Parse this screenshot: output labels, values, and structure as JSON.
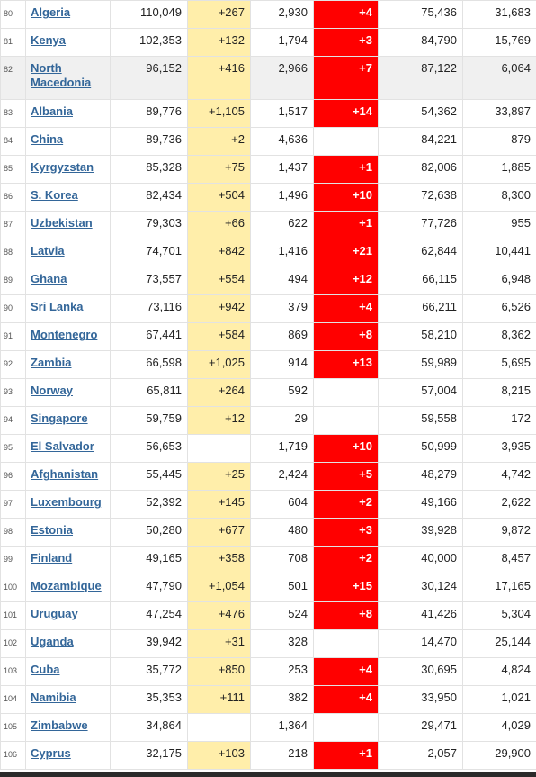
{
  "rows": [
    {
      "rank": "80",
      "country": "Algeria",
      "total": "110,049",
      "new_cases": "+267",
      "deaths": "2,930",
      "new_deaths": "+4",
      "recovered": "75,436",
      "active": "31,683"
    },
    {
      "rank": "81",
      "country": "Kenya",
      "total": "102,353",
      "new_cases": "+132",
      "deaths": "1,794",
      "new_deaths": "+3",
      "recovered": "84,790",
      "active": "15,769"
    },
    {
      "rank": "82",
      "country": "North Macedonia",
      "total": "96,152",
      "new_cases": "+416",
      "deaths": "2,966",
      "new_deaths": "+7",
      "recovered": "87,122",
      "active": "6,064",
      "highlight": true
    },
    {
      "rank": "83",
      "country": "Albania",
      "total": "89,776",
      "new_cases": "+1,105",
      "deaths": "1,517",
      "new_deaths": "+14",
      "recovered": "54,362",
      "active": "33,897"
    },
    {
      "rank": "84",
      "country": "China",
      "total": "89,736",
      "new_cases": "+2",
      "deaths": "4,636",
      "new_deaths": "",
      "recovered": "84,221",
      "active": "879"
    },
    {
      "rank": "85",
      "country": "Kyrgyzstan",
      "total": "85,328",
      "new_cases": "+75",
      "deaths": "1,437",
      "new_deaths": "+1",
      "recovered": "82,006",
      "active": "1,885"
    },
    {
      "rank": "86",
      "country": "S. Korea",
      "total": "82,434",
      "new_cases": "+504",
      "deaths": "1,496",
      "new_deaths": "+10",
      "recovered": "72,638",
      "active": "8,300"
    },
    {
      "rank": "87",
      "country": "Uzbekistan",
      "total": "79,303",
      "new_cases": "+66",
      "deaths": "622",
      "new_deaths": "+1",
      "recovered": "77,726",
      "active": "955"
    },
    {
      "rank": "88",
      "country": "Latvia",
      "total": "74,701",
      "new_cases": "+842",
      "deaths": "1,416",
      "new_deaths": "+21",
      "recovered": "62,844",
      "active": "10,441"
    },
    {
      "rank": "89",
      "country": "Ghana",
      "total": "73,557",
      "new_cases": "+554",
      "deaths": "494",
      "new_deaths": "+12",
      "recovered": "66,115",
      "active": "6,948"
    },
    {
      "rank": "90",
      "country": "Sri Lanka",
      "total": "73,116",
      "new_cases": "+942",
      "deaths": "379",
      "new_deaths": "+4",
      "recovered": "66,211",
      "active": "6,526"
    },
    {
      "rank": "91",
      "country": "Montenegro",
      "total": "67,441",
      "new_cases": "+584",
      "deaths": "869",
      "new_deaths": "+8",
      "recovered": "58,210",
      "active": "8,362"
    },
    {
      "rank": "92",
      "country": "Zambia",
      "total": "66,598",
      "new_cases": "+1,025",
      "deaths": "914",
      "new_deaths": "+13",
      "recovered": "59,989",
      "active": "5,695"
    },
    {
      "rank": "93",
      "country": "Norway",
      "total": "65,811",
      "new_cases": "+264",
      "deaths": "592",
      "new_deaths": "",
      "recovered": "57,004",
      "active": "8,215"
    },
    {
      "rank": "94",
      "country": "Singapore",
      "total": "59,759",
      "new_cases": "+12",
      "deaths": "29",
      "new_deaths": "",
      "recovered": "59,558",
      "active": "172"
    },
    {
      "rank": "95",
      "country": "El Salvador",
      "total": "56,653",
      "new_cases": "",
      "deaths": "1,719",
      "new_deaths": "+10",
      "recovered": "50,999",
      "active": "3,935"
    },
    {
      "rank": "96",
      "country": "Afghanistan",
      "total": "55,445",
      "new_cases": "+25",
      "deaths": "2,424",
      "new_deaths": "+5",
      "recovered": "48,279",
      "active": "4,742"
    },
    {
      "rank": "97",
      "country": "Luxembourg",
      "total": "52,392",
      "new_cases": "+145",
      "deaths": "604",
      "new_deaths": "+2",
      "recovered": "49,166",
      "active": "2,622"
    },
    {
      "rank": "98",
      "country": "Estonia",
      "total": "50,280",
      "new_cases": "+677",
      "deaths": "480",
      "new_deaths": "+3",
      "recovered": "39,928",
      "active": "9,872"
    },
    {
      "rank": "99",
      "country": "Finland",
      "total": "49,165",
      "new_cases": "+358",
      "deaths": "708",
      "new_deaths": "+2",
      "recovered": "40,000",
      "active": "8,457"
    },
    {
      "rank": "100",
      "country": "Mozambique",
      "total": "47,790",
      "new_cases": "+1,054",
      "deaths": "501",
      "new_deaths": "+15",
      "recovered": "30,124",
      "active": "17,165"
    },
    {
      "rank": "101",
      "country": "Uruguay",
      "total": "47,254",
      "new_cases": "+476",
      "deaths": "524",
      "new_deaths": "+8",
      "recovered": "41,426",
      "active": "5,304"
    },
    {
      "rank": "102",
      "country": "Uganda",
      "total": "39,942",
      "new_cases": "+31",
      "deaths": "328",
      "new_deaths": "",
      "recovered": "14,470",
      "active": "25,144"
    },
    {
      "rank": "103",
      "country": "Cuba",
      "total": "35,772",
      "new_cases": "+850",
      "deaths": "253",
      "new_deaths": "+4",
      "recovered": "30,695",
      "active": "4,824"
    },
    {
      "rank": "104",
      "country": "Namibia",
      "total": "35,353",
      "new_cases": "+111",
      "deaths": "382",
      "new_deaths": "+4",
      "recovered": "33,950",
      "active": "1,021"
    },
    {
      "rank": "105",
      "country": "Zimbabwe",
      "total": "34,864",
      "new_cases": "",
      "deaths": "1,364",
      "new_deaths": "",
      "recovered": "29,471",
      "active": "4,029"
    },
    {
      "rank": "106",
      "country": "Cyprus",
      "total": "32,175",
      "new_cases": "+103",
      "deaths": "218",
      "new_deaths": "+1",
      "recovered": "2,057",
      "active": "29,900"
    }
  ],
  "colors": {
    "new_cases_bg": "#ffeeaa",
    "new_deaths_bg": "#ff0000",
    "link": "#336699",
    "highlight_row": "#f0f0f0"
  }
}
